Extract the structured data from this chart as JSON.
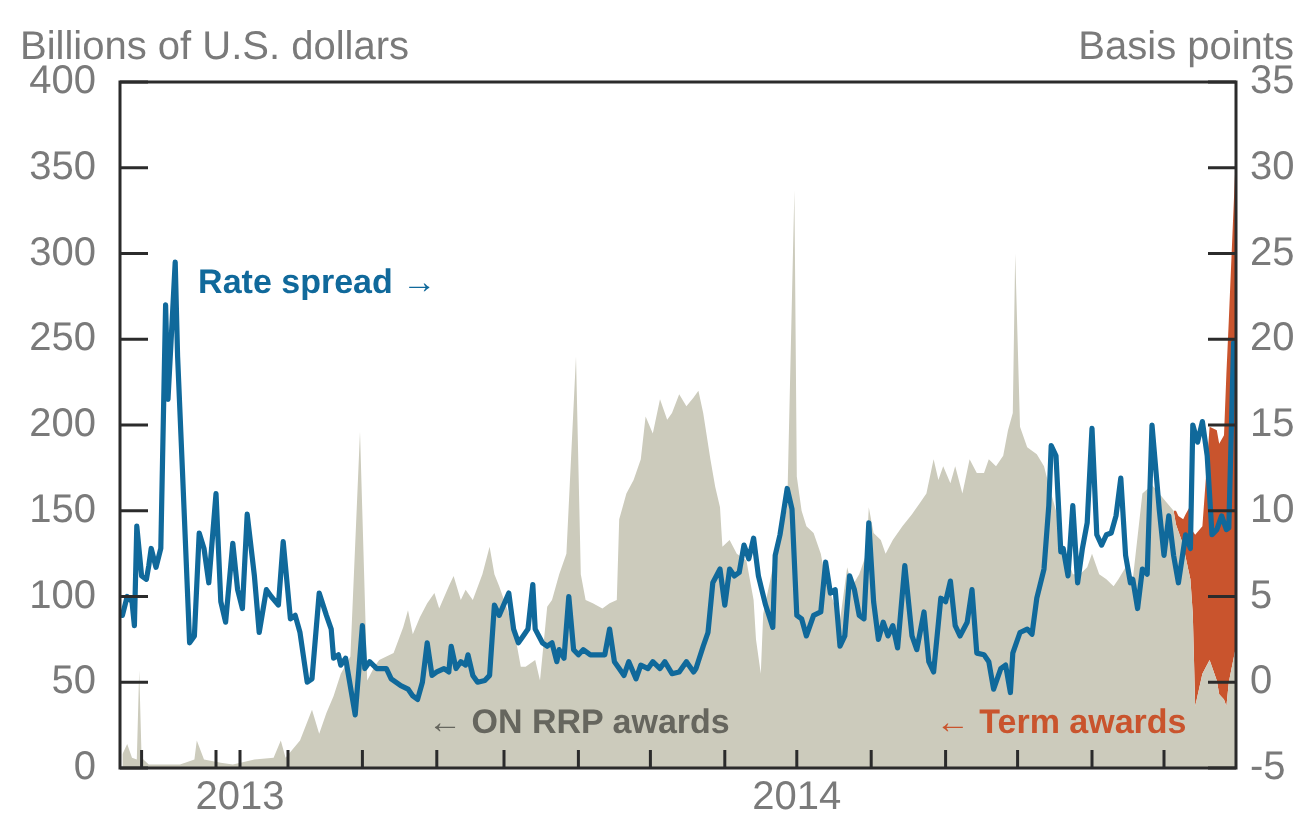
{
  "chart_data": {
    "type": "area",
    "ylabel": "Billions of U.S. dollars",
    "y2label": "Basis points",
    "xlim": [
      "2013-09-22",
      "2014-12-31"
    ],
    "xticks": [
      {
        "value": "2013-10-01",
        "label": null
      },
      {
        "value": "2013-11-01",
        "label": null
      },
      {
        "value": "2013-11-11",
        "label": "2013"
      },
      {
        "value": "2013-12-01",
        "label": null
      },
      {
        "value": "2014-01-01",
        "label": null
      },
      {
        "value": "2014-02-01",
        "label": null
      },
      {
        "value": "2014-03-01",
        "label": null
      },
      {
        "value": "2014-04-01",
        "label": null
      },
      {
        "value": "2014-05-01",
        "label": null
      },
      {
        "value": "2014-06-01",
        "label": null
      },
      {
        "value": "2014-07-01",
        "label": "2014"
      },
      {
        "value": "2014-08-01",
        "label": null
      },
      {
        "value": "2014-09-01",
        "label": null
      },
      {
        "value": "2014-10-01",
        "label": null
      },
      {
        "value": "2014-11-01",
        "label": null
      },
      {
        "value": "2014-12-01",
        "label": null
      }
    ],
    "ylim": [
      0,
      400
    ],
    "yticks": [
      0,
      50,
      100,
      150,
      200,
      250,
      300,
      350,
      400
    ],
    "y2lim": [
      -5,
      35
    ],
    "y2ticks": [
      -5,
      0,
      5,
      10,
      15,
      20,
      25,
      30,
      35
    ],
    "stacked": true,
    "x": [
      "2013-09-23",
      "2013-09-25",
      "2013-09-27",
      "2013-09-29",
      "2013-09-30",
      "2013-10-01",
      "2013-10-04",
      "2013-10-09",
      "2013-10-17",
      "2013-10-23",
      "2013-10-24",
      "2013-10-27",
      "2013-11-03",
      "2013-11-08",
      "2013-11-17",
      "2013-11-25",
      "2013-11-28",
      "2013-11-30",
      "2013-12-06",
      "2013-12-11",
      "2013-12-14",
      "2013-12-17",
      "2013-12-20",
      "2013-12-23",
      "2013-12-27",
      "2013-12-31",
      "2014-01-03",
      "2014-01-06",
      "2014-01-08",
      "2014-01-14",
      "2014-01-18",
      "2014-01-20",
      "2014-01-22",
      "2014-01-25",
      "2014-01-28",
      "2014-01-31",
      "2014-02-02",
      "2014-02-06",
      "2014-02-08",
      "2014-02-11",
      "2014-02-13",
      "2014-02-16",
      "2014-02-20",
      "2014-02-23",
      "2014-02-25",
      "2014-02-27",
      "2014-03-02",
      "2014-03-05",
      "2014-03-08",
      "2014-03-10",
      "2014-03-14",
      "2014-03-16",
      "2014-03-19",
      "2014-03-21",
      "2014-03-24",
      "2014-03-27",
      "2014-03-31",
      "2014-04-02",
      "2014-04-04",
      "2014-04-07",
      "2014-04-11",
      "2014-04-14",
      "2014-04-17",
      "2014-04-18",
      "2014-04-21",
      "2014-04-24",
      "2014-04-27",
      "2014-04-29",
      "2014-05-02",
      "2014-05-05",
      "2014-05-08",
      "2014-05-10",
      "2014-05-13",
      "2014-05-16",
      "2014-05-19",
      "2014-05-21",
      "2014-05-23",
      "2014-05-26",
      "2014-05-28",
      "2014-05-30",
      "2014-05-31",
      "2014-06-03",
      "2014-06-06",
      "2014-06-10",
      "2014-06-13",
      "2014-06-14",
      "2014-06-16",
      "2014-06-17",
      "2014-06-20",
      "2014-06-22",
      "2014-06-25",
      "2014-06-27",
      "2014-06-30",
      "2014-07-01",
      "2014-07-03",
      "2014-07-05",
      "2014-07-08",
      "2014-07-11",
      "2014-07-13",
      "2014-07-16",
      "2014-07-19",
      "2014-07-22",
      "2014-07-24",
      "2014-07-27",
      "2014-07-30",
      "2014-07-31",
      "2014-08-02",
      "2014-08-05",
      "2014-08-07",
      "2014-08-10",
      "2014-08-14",
      "2014-08-18",
      "2014-08-21",
      "2014-08-24",
      "2014-08-27",
      "2014-08-29",
      "2014-08-31",
      "2014-09-03",
      "2014-09-05",
      "2014-09-08",
      "2014-09-11",
      "2014-09-14",
      "2014-09-17",
      "2014-09-19",
      "2014-09-22",
      "2014-09-25",
      "2014-09-27",
      "2014-09-29",
      "2014-09-30",
      "2014-10-02",
      "2014-10-05",
      "2014-10-09",
      "2014-10-12",
      "2014-10-14",
      "2014-10-17",
      "2014-10-20",
      "2014-10-24",
      "2014-10-27",
      "2014-10-30",
      "2014-11-01",
      "2014-11-04",
      "2014-11-07",
      "2014-11-10",
      "2014-11-12",
      "2014-11-15",
      "2014-11-18",
      "2014-11-22",
      "2014-11-26",
      "2014-11-29",
      "2014-12-02",
      "2014-12-05",
      "2014-12-06",
      "2014-12-07",
      "2014-12-09",
      "2014-12-10",
      "2014-12-12",
      "2014-12-13",
      "2014-12-14",
      "2014-12-17",
      "2014-12-20",
      "2014-12-23",
      "2014-12-24",
      "2014-12-26",
      "2014-12-27",
      "2014-12-28",
      "2014-12-31"
    ],
    "series": [
      {
        "name": "← ON RRP awards",
        "color": "#cccbbc",
        "values": [
          8,
          14,
          6,
          5,
          57,
          6,
          2,
          2,
          2,
          5,
          16,
          5,
          3,
          2,
          5,
          6,
          16,
          6,
          16,
          34,
          20,
          32,
          42,
          55,
          65,
          196,
          51,
          59,
          63,
          67,
          82,
          92,
          78,
          88,
          96,
          102,
          93,
          106,
          112,
          98,
          104,
          98,
          113,
          129,
          113,
          106,
          94,
          82,
          59,
          59,
          63,
          51,
          94,
          98,
          113,
          125,
          240,
          113,
          98,
          96,
          93,
          96,
          98,
          145,
          160,
          168,
          180,
          205,
          195,
          215,
          203,
          207,
          218,
          211,
          216,
          220,
          207,
          180,
          164,
          152,
          129,
          133,
          125,
          121,
          98,
          75,
          55,
          90,
          110,
          125,
          141,
          152,
          337,
          170,
          150,
          141,
          137,
          125,
          110,
          98,
          86,
          117,
          106,
          113,
          125,
          152,
          137,
          133,
          125,
          133,
          141,
          148,
          154,
          160,
          180,
          168,
          176,
          166,
          176,
          160,
          180,
          172,
          172,
          180,
          176,
          182,
          197,
          207,
          300,
          199,
          187,
          183,
          176,
          165,
          150,
          130,
          113,
          113,
          117,
          125,
          113,
          110,
          106,
          110,
          117,
          110,
          160,
          165,
          160,
          155,
          150,
          142,
          138,
          130,
          123,
          110,
          90,
          36,
          55,
          63,
          51,
          43,
          40,
          36,
          50,
          71
        ]
      },
      {
        "name": "← Term awards",
        "color": "#c9542d",
        "values": [
          null,
          null,
          null,
          null,
          null,
          null,
          null,
          null,
          null,
          null,
          null,
          null,
          null,
          null,
          null,
          null,
          null,
          null,
          null,
          null,
          null,
          null,
          null,
          null,
          null,
          null,
          null,
          null,
          null,
          null,
          null,
          null,
          null,
          null,
          null,
          null,
          null,
          null,
          null,
          null,
          null,
          null,
          null,
          null,
          null,
          null,
          null,
          null,
          null,
          null,
          null,
          null,
          null,
          null,
          null,
          null,
          null,
          null,
          null,
          null,
          null,
          null,
          null,
          null,
          null,
          null,
          null,
          null,
          null,
          null,
          null,
          null,
          null,
          null,
          null,
          null,
          null,
          null,
          null,
          null,
          null,
          null,
          null,
          null,
          null,
          null,
          null,
          null,
          null,
          null,
          null,
          null,
          null,
          null,
          null,
          null,
          null,
          null,
          null,
          null,
          null,
          null,
          null,
          null,
          null,
          null,
          null,
          null,
          null,
          null,
          null,
          null,
          null,
          null,
          null,
          null,
          null,
          null,
          null,
          null,
          null,
          null,
          null,
          null,
          null,
          null,
          null,
          null,
          null,
          null,
          null,
          null,
          null,
          null,
          null,
          null,
          null,
          null,
          null,
          null,
          null,
          null,
          null,
          null,
          null,
          null,
          null,
          null,
          null,
          null,
          0,
          8,
          9,
          15,
          25,
          43,
          48,
          100,
          86,
          136,
          146,
          146,
          154,
          194,
          211,
          289
        ]
      },
      {
        "name": "Rate spread →",
        "type": "line",
        "axis": "y2",
        "color": "#10699b",
        "x": [
          "2013-09-23",
          "2013-09-25",
          "2013-09-27",
          "2013-09-28",
          "2013-09-29",
          "2013-10-01",
          "2013-10-03",
          "2013-10-04",
          "2013-10-05",
          "2013-10-07",
          "2013-10-09",
          "2013-10-11",
          "2013-10-12",
          "2013-10-14",
          "2013-10-15",
          "2013-10-16",
          "2013-10-18",
          "2013-10-21",
          "2013-10-23",
          "2013-10-25",
          "2013-10-27",
          "2013-10-29",
          "2013-11-01",
          "2013-11-03",
          "2013-11-05",
          "2013-11-08",
          "2013-11-10",
          "2013-11-12",
          "2013-11-14",
          "2013-11-17",
          "2013-11-19",
          "2013-11-22",
          "2013-11-24",
          "2013-11-27",
          "2013-11-29",
          "2013-12-02",
          "2013-12-04",
          "2013-12-06",
          "2013-12-09",
          "2013-12-11",
          "2013-12-14",
          "2013-12-17",
          "2013-12-19",
          "2013-12-20",
          "2013-12-22",
          "2013-12-23",
          "2013-12-25",
          "2013-12-29",
          "2014-01-01",
          "2014-01-02",
          "2014-01-04",
          "2014-01-07",
          "2014-01-11",
          "2014-01-13",
          "2014-01-17",
          "2014-01-20",
          "2014-01-22",
          "2014-01-24",
          "2014-01-26",
          "2014-01-28",
          "2014-01-30",
          "2014-02-01",
          "2014-02-04",
          "2014-02-06",
          "2014-02-07",
          "2014-02-09",
          "2014-02-11",
          "2014-02-13",
          "2014-02-14",
          "2014-02-16",
          "2014-02-18",
          "2014-02-21",
          "2014-02-23",
          "2014-02-25",
          "2014-02-27",
          "2014-03-03",
          "2014-03-05",
          "2014-03-07",
          "2014-03-09",
          "2014-03-11",
          "2014-03-13",
          "2014-03-14",
          "2014-03-17",
          "2014-03-19",
          "2014-03-21",
          "2014-03-23",
          "2014-03-24",
          "2014-03-26",
          "2014-03-28",
          "2014-03-30",
          "2014-04-01",
          "2014-04-03",
          "2014-04-06",
          "2014-04-08",
          "2014-04-12",
          "2014-04-14",
          "2014-04-16",
          "2014-04-18",
          "2014-04-20",
          "2014-04-22",
          "2014-04-25",
          "2014-04-27",
          "2014-04-30",
          "2014-05-02",
          "2014-05-05",
          "2014-05-07",
          "2014-05-10",
          "2014-05-13",
          "2014-05-16",
          "2014-05-19",
          "2014-05-20",
          "2014-05-23",
          "2014-05-25",
          "2014-05-27",
          "2014-05-30",
          "2014-06-01",
          "2014-06-03",
          "2014-06-05",
          "2014-06-07",
          "2014-06-09",
          "2014-06-11",
          "2014-06-13",
          "2014-06-15",
          "2014-06-18",
          "2014-06-21",
          "2014-06-22",
          "2014-06-24",
          "2014-06-27",
          "2014-06-29",
          "2014-07-01",
          "2014-07-03",
          "2014-07-05",
          "2014-07-08",
          "2014-07-11",
          "2014-07-13",
          "2014-07-15",
          "2014-07-17",
          "2014-07-19",
          "2014-07-21",
          "2014-07-23",
          "2014-07-25",
          "2014-07-27",
          "2014-07-29",
          "2014-07-31",
          "2014-08-02",
          "2014-08-04",
          "2014-08-06",
          "2014-08-08",
          "2014-08-10",
          "2014-08-12",
          "2014-08-15",
          "2014-08-18",
          "2014-08-20",
          "2014-08-23",
          "2014-08-25",
          "2014-08-27",
          "2014-08-30",
          "2014-09-01",
          "2014-09-03",
          "2014-09-05",
          "2014-09-07",
          "2014-09-10",
          "2014-09-12",
          "2014-09-14",
          "2014-09-17",
          "2014-09-19",
          "2014-09-21",
          "2014-09-24",
          "2014-09-26",
          "2014-09-28",
          "2014-09-29",
          "2014-10-02",
          "2014-10-05",
          "2014-10-07",
          "2014-10-09",
          "2014-10-12",
          "2014-10-14",
          "2014-10-15",
          "2014-10-17",
          "2014-10-19",
          "2014-10-20",
          "2014-10-22",
          "2014-10-24",
          "2014-10-26",
          "2014-10-28",
          "2014-10-30",
          "2014-11-01",
          "2014-11-03",
          "2014-11-05",
          "2014-11-07",
          "2014-11-09",
          "2014-11-11",
          "2014-11-13",
          "2014-11-15",
          "2014-11-17",
          "2014-11-18",
          "2014-11-20",
          "2014-11-22",
          "2014-11-24",
          "2014-11-26",
          "2014-11-29",
          "2014-12-01",
          "2014-12-03",
          "2014-12-05",
          "2014-12-07",
          "2014-12-10",
          "2014-12-12",
          "2014-12-13",
          "2014-12-15",
          "2014-12-17",
          "2014-12-19",
          "2014-12-21",
          "2014-12-23",
          "2014-12-25",
          "2014-12-27",
          "2014-12-28",
          "2014-12-30"
        ],
        "values": [
          3.9,
          5.0,
          4.7,
          3.3,
          9.1,
          6.2,
          6.0,
          6.8,
          7.8,
          6.7,
          7.8,
          22.0,
          16.5,
          21.8,
          24.5,
          19.0,
          12.4,
          2.3,
          2.7,
          8.7,
          7.8,
          5.8,
          11.0,
          4.7,
          3.5,
          8.1,
          5.4,
          4.3,
          9.8,
          6.2,
          2.9,
          5.4,
          5.0,
          4.5,
          8.2,
          3.7,
          3.9,
          2.9,
          0.0,
          0.2,
          5.2,
          3.9,
          3.1,
          1.4,
          1.6,
          1.0,
          1.4,
          -1.9,
          3.3,
          0.8,
          1.2,
          0.8,
          0.8,
          0.2,
          -0.2,
          -0.4,
          -0.8,
          -1.0,
          0.0,
          2.3,
          0.4,
          0.6,
          0.8,
          0.6,
          2.1,
          0.8,
          1.2,
          1.0,
          1.6,
          0.4,
          0.0,
          0.1,
          0.4,
          4.5,
          3.9,
          5.2,
          3.1,
          2.3,
          2.7,
          3.1,
          5.7,
          3.1,
          2.3,
          2.1,
          2.3,
          1.2,
          1.9,
          1.4,
          5.0,
          1.9,
          1.6,
          1.9,
          1.6,
          1.6,
          1.6,
          3.1,
          1.2,
          0.8,
          0.4,
          1.2,
          0.2,
          1.0,
          0.8,
          1.2,
          0.8,
          1.2,
          0.5,
          0.6,
          1.2,
          0.6,
          0.8,
          2.1,
          2.9,
          5.8,
          6.6,
          4.5,
          6.6,
          6.2,
          6.4,
          8.0,
          7.2,
          8.4,
          6.2,
          4.5,
          3.2,
          7.4,
          8.6,
          11.3,
          10.1,
          3.9,
          3.7,
          2.7,
          3.9,
          4.1,
          7.0,
          5.2,
          5.4,
          2.1,
          2.7,
          6.2,
          5.4,
          3.9,
          3.7,
          9.3,
          4.7,
          2.5,
          3.5,
          2.7,
          3.3,
          2.0,
          6.8,
          2.7,
          1.9,
          4.1,
          1.2,
          0.6,
          4.9,
          4.7,
          5.9,
          3.3,
          2.7,
          3.5,
          5.4,
          1.7,
          1.6,
          1.2,
          -0.4,
          0.8,
          1.0,
          -0.6,
          1.7,
          2.9,
          3.1,
          2.8,
          4.9,
          6.6,
          10.3,
          13.8,
          13.2,
          7.6,
          7.8,
          6.2,
          10.3,
          5.8,
          7.8,
          9.3,
          14.8,
          8.6,
          8.0,
          8.6,
          8.7,
          9.7,
          11.9,
          7.4,
          5.8,
          6.0,
          4.3,
          6.6,
          6.3,
          15.0,
          10.1,
          7.4,
          9.7,
          7.4,
          5.8,
          8.6,
          7.8,
          15.0,
          14.0,
          15.2,
          13.2,
          8.6,
          8.9,
          9.7,
          8.9,
          9.0,
          19.8
        ]
      }
    ]
  }
}
